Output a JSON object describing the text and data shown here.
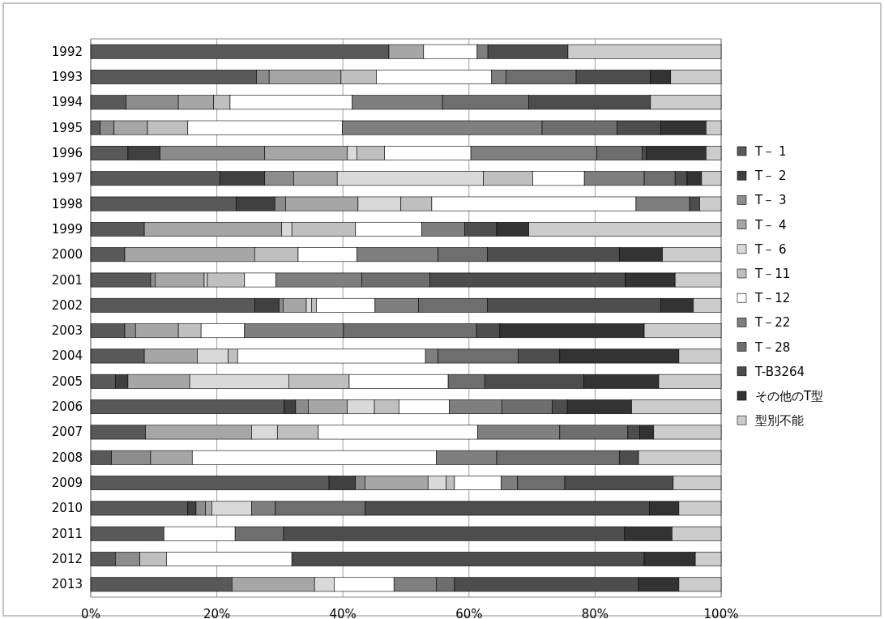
{
  "chart_data": {
    "type": "bar",
    "orientation": "horizontal",
    "stacked": true,
    "grid": "x",
    "legend": "right",
    "categories": [
      "1992",
      "1993",
      "1994",
      "1995",
      "1996",
      "1997",
      "1998",
      "1999",
      "2000",
      "2001",
      "2002",
      "2003",
      "2004",
      "2005",
      "2006",
      "2007",
      "2008",
      "2009",
      "2010",
      "2011",
      "2012",
      "2013"
    ],
    "xlim": [
      0,
      100
    ],
    "xticks": [
      {
        "value": 0,
        "label": "0%"
      },
      {
        "value": 20,
        "label": "20%"
      },
      {
        "value": 40,
        "label": "40%"
      },
      {
        "value": 60,
        "label": "60%"
      },
      {
        "value": 80,
        "label": "80%"
      },
      {
        "value": 100,
        "label": "100%"
      }
    ],
    "series": [
      {
        "name": "T－ 1",
        "color": "#595959",
        "values": [
          47.3,
          26.3,
          5.6,
          1.5,
          5.9,
          20.5,
          23.1,
          8.5,
          5.4,
          9.5,
          26.0,
          5.4,
          8.5,
          3.9,
          30.7,
          8.7,
          3.3,
          37.8,
          15.4,
          11.6,
          3.9,
          22.4
        ]
      },
      {
        "name": "T－ 2",
        "color": "#404040",
        "values": [
          0,
          0,
          0,
          0,
          5.1,
          7.1,
          6.1,
          0,
          0,
          0,
          3.9,
          0,
          0,
          2.0,
          1.8,
          0,
          0,
          4.2,
          1.3,
          0,
          0,
          0
        ]
      },
      {
        "name": "T－ 3",
        "color": "#8c8c8c",
        "values": [
          0,
          2.0,
          8.3,
          2.2,
          16.6,
          4.6,
          1.7,
          0,
          0,
          0.7,
          0.6,
          1.7,
          0,
          0,
          2.0,
          0,
          6.2,
          1.5,
          1.5,
          0,
          3.9,
          0
        ]
      },
      {
        "name": "T－ 4",
        "color": "#a6a6a6",
        "values": [
          5.5,
          11.4,
          5.6,
          5.3,
          13.1,
          6.9,
          11.5,
          21.8,
          20.6,
          7.8,
          3.7,
          6.8,
          8.4,
          9.8,
          6.2,
          16.8,
          6.6,
          10.0,
          1.0,
          0,
          0,
          13.1
        ]
      },
      {
        "name": "T－ 6",
        "color": "#d9d9d9",
        "values": [
          0,
          0,
          0,
          0,
          1.5,
          23.2,
          6.8,
          1.6,
          0,
          0.5,
          0.8,
          0,
          4.9,
          15.7,
          4.3,
          4.1,
          0,
          2.9,
          6.3,
          0,
          0,
          3.1
        ]
      },
      {
        "name": "T－11",
        "color": "#bfbfbf",
        "values": [
          0,
          5.6,
          2.6,
          6.4,
          4.4,
          7.8,
          4.9,
          10.1,
          6.9,
          5.9,
          0.8,
          3.6,
          1.5,
          9.6,
          3.9,
          6.5,
          0,
          1.3,
          0,
          0,
          4.2,
          0
        ]
      },
      {
        "name": "T－12",
        "color": "#ffffff",
        "values": [
          8.5,
          18.3,
          19.4,
          24.5,
          13.7,
          8.2,
          32.4,
          10.5,
          9.3,
          5.0,
          9.3,
          6.9,
          29.8,
          15.7,
          8.0,
          25.3,
          38.7,
          7.4,
          0,
          11.3,
          19.9,
          9.5
        ]
      },
      {
        "name": "T－22",
        "color": "#7f7f7f",
        "values": [
          1.7,
          2.3,
          14.3,
          31.7,
          20.0,
          9.5,
          8.5,
          6.8,
          12.9,
          13.6,
          6.9,
          15.7,
          2.0,
          0,
          8.3,
          13.0,
          9.6,
          2.6,
          3.8,
          0,
          0,
          6.7
        ]
      },
      {
        "name": "T－28",
        "color": "#6e6e6e",
        "values": [
          0,
          11.1,
          13.7,
          11.9,
          7.2,
          4.9,
          0,
          0,
          7.8,
          10.8,
          10.9,
          21.1,
          12.7,
          5.8,
          8.0,
          10.8,
          19.5,
          7.5,
          14.2,
          7.7,
          0,
          2.9
        ]
      },
      {
        "name": "T-B3264",
        "color": "#4d4d4d",
        "values": [
          12.7,
          11.8,
          19.3,
          6.9,
          0.6,
          1.9,
          1.6,
          5.1,
          21.0,
          31.0,
          27.5,
          3.7,
          6.6,
          15.7,
          2.4,
          1.9,
          3.0,
          17.2,
          45.1,
          54.1,
          55.9,
          29.2
        ]
      },
      {
        "name": "その他のT型",
        "color": "#333333",
        "values": [
          0,
          3.2,
          0,
          7.2,
          9.5,
          2.3,
          0,
          5.1,
          6.8,
          7.9,
          5.2,
          22.9,
          18.9,
          11.9,
          10.2,
          2.2,
          0,
          0,
          4.7,
          7.5,
          8.1,
          6.4
        ]
      },
      {
        "name": "型別不能",
        "color": "#cccccc",
        "values": [
          24.3,
          8.0,
          11.2,
          2.4,
          2.4,
          3.1,
          3.4,
          30.5,
          9.3,
          7.3,
          4.4,
          12.2,
          6.7,
          9.9,
          14.2,
          10.7,
          13.1,
          7.6,
          6.7,
          7.8,
          4.1,
          6.7
        ]
      }
    ]
  }
}
